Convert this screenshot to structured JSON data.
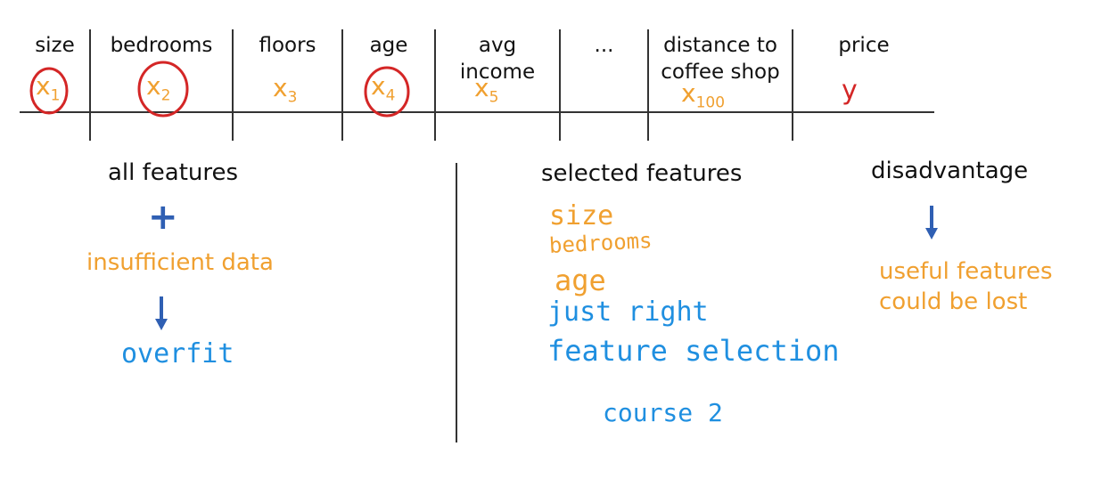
{
  "table": {
    "headers": [
      {
        "label": "size"
      },
      {
        "label": "bedrooms"
      },
      {
        "label": "floors"
      },
      {
        "label": "age"
      },
      {
        "label": "avg\nincome"
      },
      {
        "label": "..."
      },
      {
        "label": "distance to\ncoffee shop"
      },
      {
        "label": "price"
      }
    ],
    "variables": [
      {
        "base": "x",
        "sub": "1",
        "circled": true
      },
      {
        "base": "x",
        "sub": "2",
        "circled": true
      },
      {
        "base": "x",
        "sub": "3",
        "circled": false
      },
      {
        "base": "x",
        "sub": "4",
        "circled": true
      },
      {
        "base": "x",
        "sub": "5",
        "circled": false
      },
      {
        "base": "",
        "sub": "",
        "circled": false
      },
      {
        "base": "x",
        "sub": "100",
        "circled": false
      },
      {
        "base": "y",
        "sub": "",
        "circled": false
      }
    ]
  },
  "left_panel": {
    "title": "all features",
    "plus_symbol": "+",
    "note": "insufficient data",
    "result": "overfit"
  },
  "middle_panel": {
    "title": "selected features",
    "items": [
      "size",
      "bedrooms",
      "age"
    ],
    "note1": "just right",
    "note2": "feature selection",
    "note3": "course 2"
  },
  "right_panel": {
    "title": "disadvantage",
    "note_line1": "useful features",
    "note_line2": "could be lost"
  },
  "colors": {
    "orange": "#f0a030",
    "blue": "#1f8fe0",
    "red": "#d42626",
    "arrow_blue": "#2f5fb3",
    "line": "#333333"
  }
}
